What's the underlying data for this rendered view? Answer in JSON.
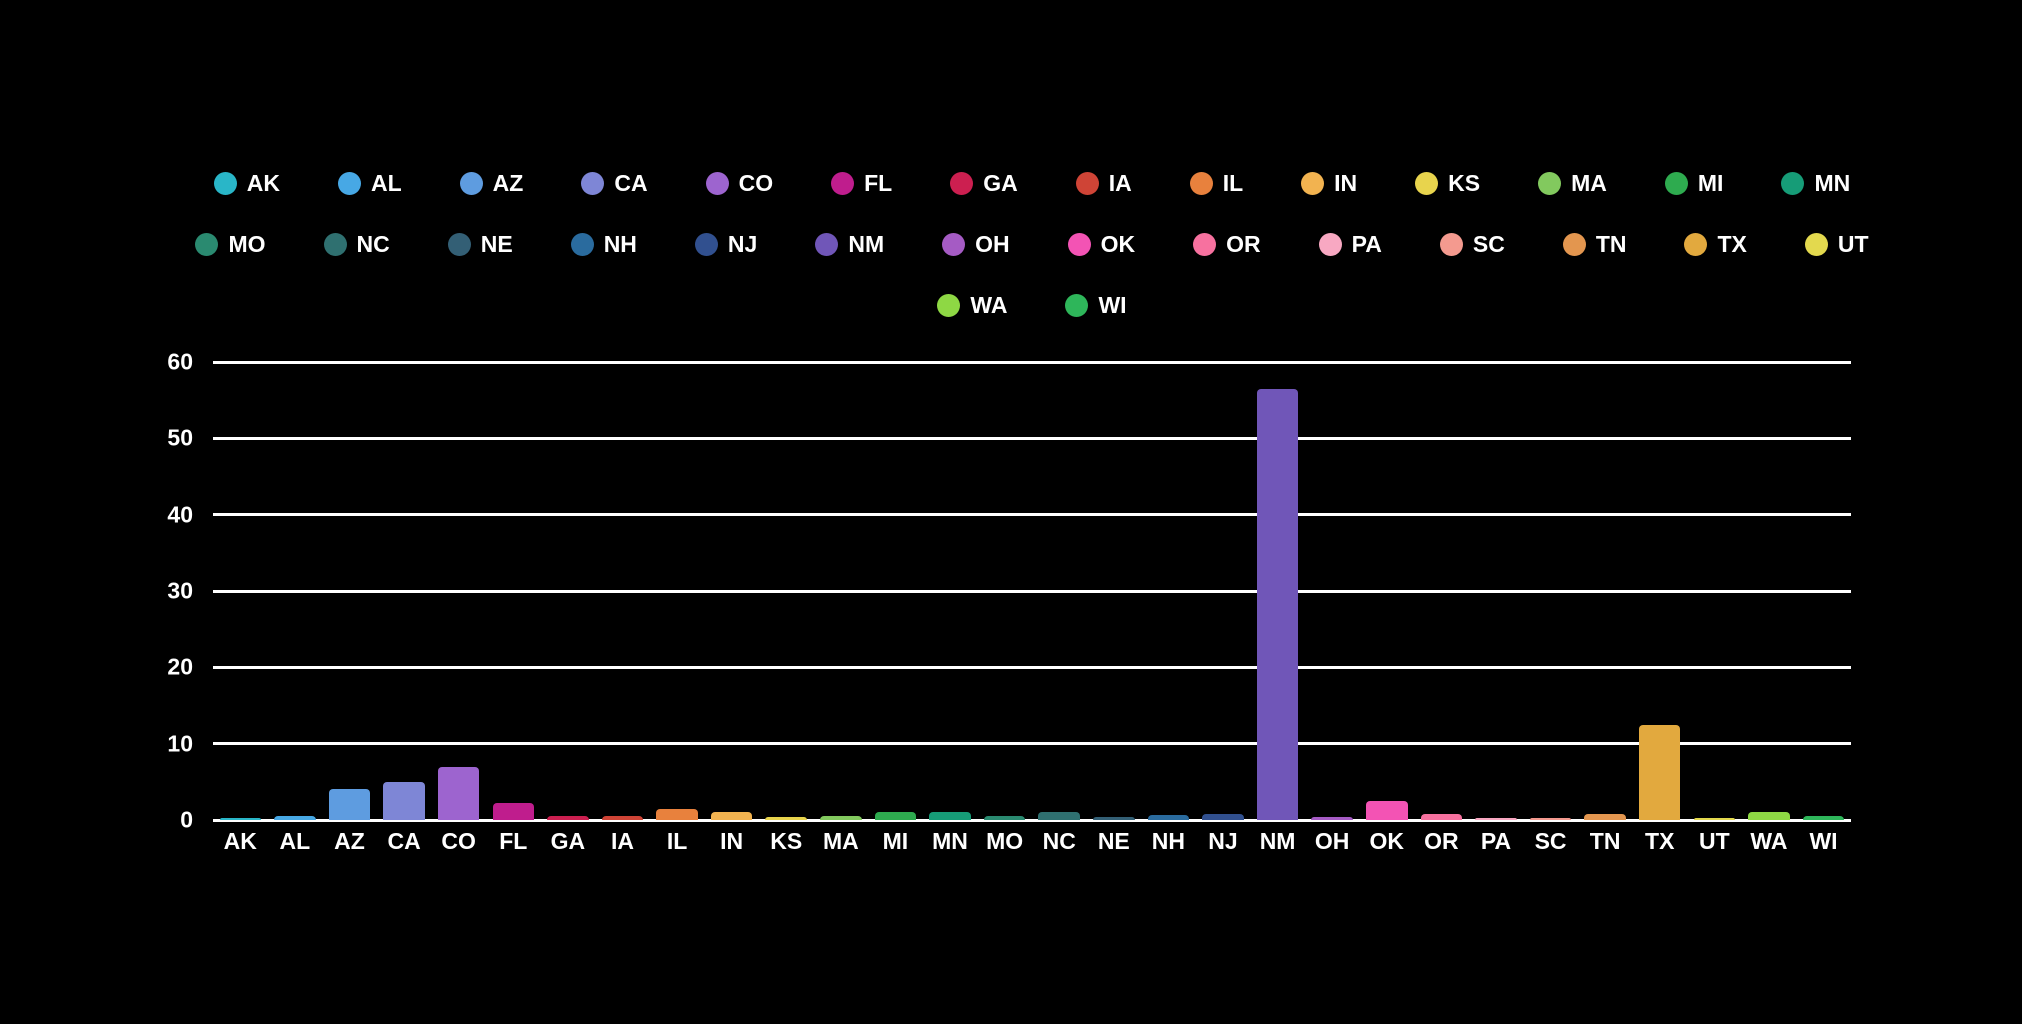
{
  "page": {
    "background": "#000000",
    "text_color": "#ffffff"
  },
  "chart_data": {
    "type": "bar",
    "title": "",
    "xlabel": "",
    "ylabel": "",
    "categories": [
      "AK",
      "AL",
      "AZ",
      "CA",
      "CO",
      "FL",
      "GA",
      "IA",
      "IL",
      "IN",
      "KS",
      "MA",
      "MI",
      "MN",
      "MO",
      "NC",
      "NE",
      "NH",
      "NJ",
      "NM",
      "OH",
      "OK",
      "OR",
      "PA",
      "SC",
      "TN",
      "TX",
      "UT",
      "WA",
      "WI"
    ],
    "values": [
      0.3,
      0.5,
      4,
      5,
      7,
      2.2,
      0.5,
      0.5,
      1.5,
      1,
      0.4,
      0.5,
      1,
      1,
      0.5,
      1,
      0.4,
      0.7,
      0.8,
      56.5,
      0.4,
      2.5,
      0.8,
      0.3,
      0.3,
      0.8,
      12.5,
      0.3,
      1,
      0.5
    ],
    "colors": [
      "#29b6c8",
      "#47a8e5",
      "#5e9ce0",
      "#7e86d6",
      "#9d64cf",
      "#bf1d8d",
      "#cc1f50",
      "#cf4436",
      "#e8813d",
      "#f2b350",
      "#e8d44d",
      "#82c95e",
      "#2eab4f",
      "#169c77",
      "#2a8a70",
      "#2f7070",
      "#335f75",
      "#2a6b9e",
      "#31508f",
      "#7056b8",
      "#a55bc4",
      "#f353b4",
      "#f7719f",
      "#f8a8c2",
      "#f49a8f",
      "#e3964f",
      "#e2a93e",
      "#e3d94e",
      "#8ed844",
      "#2eb65a"
    ],
    "y_ticks": [
      0,
      10,
      20,
      30,
      40,
      50,
      60
    ],
    "ylim": [
      0,
      60
    ],
    "grid": true,
    "grid_color": "#ffffff",
    "text_color": "#ffffff",
    "legend_position": "top",
    "legend_rows": [
      14,
      14,
      2
    ]
  }
}
